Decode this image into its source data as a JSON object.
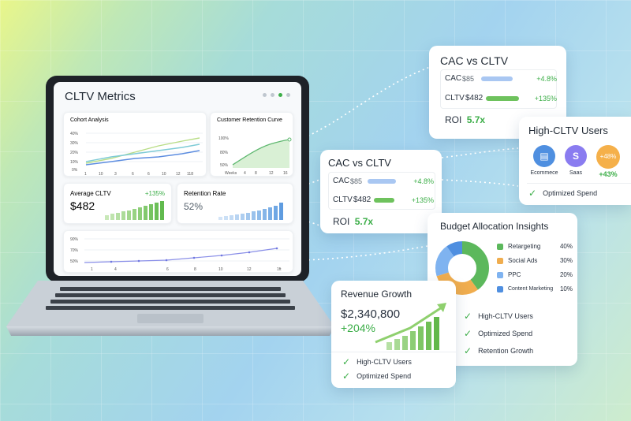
{
  "dashboard": {
    "title": "CLTV Metrics",
    "cohort": {
      "title": "Cohort Analysis",
      "y_ticks": [
        "40%",
        "30%",
        "20%",
        "10%",
        "0%"
      ],
      "x_ticks": [
        "1",
        "10",
        "3",
        "6",
        "6",
        "10",
        "12",
        "118"
      ]
    },
    "retention_curve": {
      "title": "Customer Retention Curve",
      "y_ticks": [
        "100%",
        "80%",
        "50%"
      ],
      "x_label": "Weeks",
      "x_ticks": [
        "4",
        "8",
        "12",
        "16"
      ]
    },
    "avg_cltv": {
      "label": "Average CLTV",
      "value": "$482",
      "change": "+135%"
    },
    "retention_rate": {
      "label": "Retention Rate",
      "value": "52%"
    },
    "trend": {
      "y_ticks": [
        "90%",
        "70%",
        "50%"
      ],
      "x_ticks": [
        "1",
        "4",
        "6",
        "8",
        "10",
        "12",
        "1ft"
      ]
    }
  },
  "cac_card_top": {
    "title": "CAC vs CLTV",
    "cac_label": "CAC",
    "cac_value": "$85",
    "cac_change": "+4.8%",
    "cltv_label": "CLTV",
    "cltv_value": "$482",
    "cltv_change": "+135%",
    "roi_label": "ROI",
    "roi_value": "5.7x"
  },
  "cac_card_mid": {
    "title": "CAC vs CLTV",
    "cac_label": "CAC",
    "cac_value": "$85",
    "cac_change": "+4.8%",
    "cltv_label": "CLTV",
    "cltv_value": "$482",
    "cltv_change": "+135%",
    "roi_label": "ROI",
    "roi_value": "5.7x"
  },
  "high_cltv": {
    "title": "High-CLTV Users",
    "segments": [
      {
        "label": "Ecommece"
      },
      {
        "label": "Saas"
      },
      {
        "badge": "+48%",
        "label": "+43%"
      }
    ],
    "check": "Optimized Spend"
  },
  "budget": {
    "title": "Budget Allocation Insights",
    "items": [
      {
        "name": "Retargeting",
        "pct": "40%",
        "color": "#5cb85c"
      },
      {
        "name": "Social Ads",
        "pct": "30%",
        "color": "#f0ad4e"
      },
      {
        "name": "PPC",
        "pct": "20%",
        "color": "#7fb3f0"
      },
      {
        "name": "Content Marketing",
        "pct": "10%",
        "color": "#4f8fe0"
      }
    ],
    "checks": [
      "High-CLTV Users",
      "Optimized Spend",
      "Retention Growth"
    ]
  },
  "revenue": {
    "title": "Revenue Growth",
    "value": "$2,340,800",
    "change": "+204%",
    "checks": [
      "High-CLTV Users",
      "Optimized Spend"
    ]
  },
  "colors": {
    "accent_green": "#3cae48",
    "accent_blue": "#4f8fe0",
    "orange": "#f0ad4e",
    "purple": "#8a7cf0"
  }
}
